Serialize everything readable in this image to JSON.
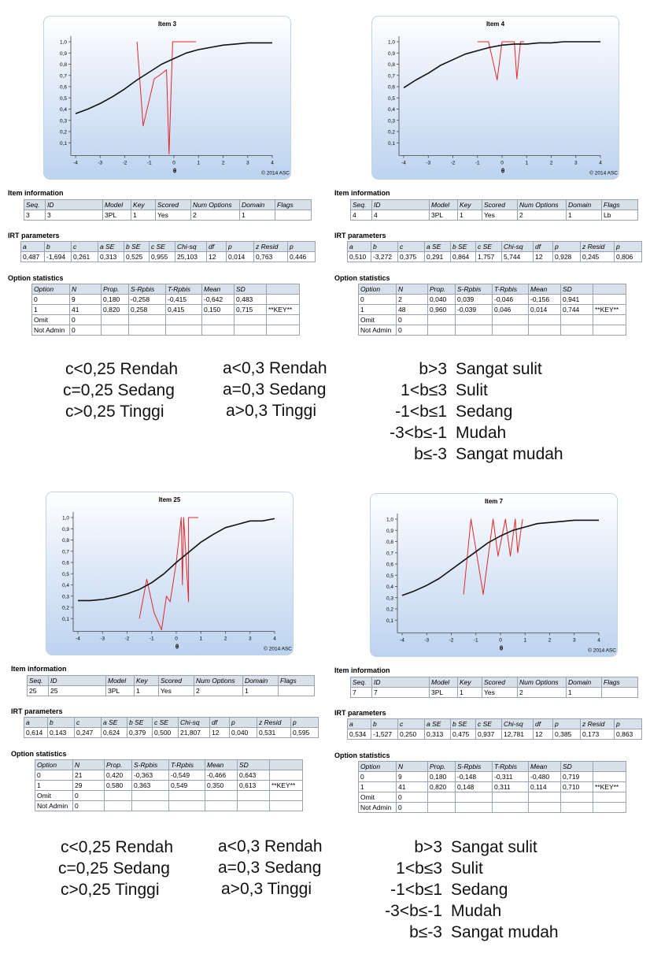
{
  "panels": [
    {
      "chart": {
        "title": "Item 3",
        "x_label": "θ",
        "copyright": "© 2014 ASC",
        "xlim": [
          -4,
          4
        ],
        "ylim": [
          0,
          1.05
        ],
        "xticks": [
          -4,
          -3,
          -2,
          -1,
          0,
          1,
          2,
          3,
          4
        ],
        "yticks": [
          {
            "value": 0.1,
            "label": "0,1"
          },
          {
            "value": 0.2,
            "label": "0,2"
          },
          {
            "value": 0.3,
            "label": "0,3"
          },
          {
            "value": 0.4,
            "label": "0,4"
          },
          {
            "value": 0.5,
            "label": "0,5"
          },
          {
            "value": 0.6,
            "label": "0,6"
          },
          {
            "value": 0.7,
            "label": "0,7"
          },
          {
            "value": 0.8,
            "label": "0,8"
          },
          {
            "value": 0.9,
            "label": "0,9"
          },
          {
            "value": 1.0,
            "label": "1,0"
          }
        ],
        "curve": {
          "color": "#111111",
          "x": [
            -4,
            -3.5,
            -3,
            -2.5,
            -2,
            -1.5,
            -1,
            -0.5,
            0,
            0.5,
            1,
            1.5,
            2,
            2.5,
            3,
            3.5,
            4
          ],
          "y": [
            0.36,
            0.4,
            0.45,
            0.51,
            0.58,
            0.66,
            0.73,
            0.8,
            0.85,
            0.9,
            0.93,
            0.95,
            0.97,
            0.98,
            0.99,
            0.99,
            0.99
          ]
        },
        "observed": {
          "color": "#e0282c",
          "x": [
            -1.5,
            -1.25,
            -0.8,
            -0.6,
            -0.3,
            -0.2,
            -0.05,
            0.9
          ],
          "y": [
            1.0,
            0.25,
            0.67,
            0.7,
            0.75,
            0.0,
            1.0,
            1.0
          ]
        }
      },
      "item_information": {
        "title": "Item information",
        "header": [
          "Seq.",
          "ID",
          "Model",
          "Key",
          "Scored",
          "Num Options",
          "Domain",
          "Flags"
        ],
        "rows": [
          [
            "3",
            "3",
            "3PL",
            "1",
            "Yes",
            "2",
            "1",
            null
          ]
        ]
      },
      "irt_parameters": {
        "title": "IRT parameters",
        "header": [
          "a",
          "b",
          "c",
          "a SE",
          "b SE",
          "c SE",
          "Chi-sq",
          "df",
          "p",
          "z Resid",
          "p"
        ],
        "rows": [
          [
            "0,487",
            "-1,694",
            "0,261",
            "0,313",
            "0,525",
            "0,955",
            "25,103",
            "12",
            "0,014",
            "0,763",
            "0,446"
          ]
        ]
      },
      "option_statistics": {
        "title": "Option statistics",
        "header": [
          "Option",
          "N",
          "Prop.",
          "S-Rpbis",
          "T-Rpbis",
          "Mean",
          "SD",
          null
        ],
        "rows": [
          [
            "0",
            "9",
            "0,180",
            "-0,258",
            "-0,415",
            "-0,642",
            "0,483",
            null
          ],
          [
            "1",
            "41",
            "0,820",
            "0,258",
            "0,415",
            "0,150",
            "0,715",
            "**KEY**"
          ],
          [
            "Omit",
            "0",
            null,
            null,
            null,
            null,
            null,
            null
          ],
          [
            "Not Admin",
            "0",
            null,
            null,
            null,
            null,
            null,
            null
          ]
        ]
      }
    },
    {
      "chart": {
        "title": "Item 4",
        "x_label": "θ",
        "copyright": "© 2014 ASC",
        "xlim": [
          -4,
          4
        ],
        "ylim": [
          0,
          1.05
        ],
        "xticks": [
          -4,
          -3,
          -2,
          -1,
          0,
          1,
          2,
          3,
          4
        ],
        "yticks": [
          {
            "value": 0.1,
            "label": "0,1"
          },
          {
            "value": 0.2,
            "label": "0,2"
          },
          {
            "value": 0.3,
            "label": "0,3"
          },
          {
            "value": 0.4,
            "label": "0,4"
          },
          {
            "value": 0.5,
            "label": "0,5"
          },
          {
            "value": 0.6,
            "label": "0,6"
          },
          {
            "value": 0.7,
            "label": "0,7"
          },
          {
            "value": 0.8,
            "label": "0,8"
          },
          {
            "value": 0.9,
            "label": "0,9"
          },
          {
            "value": 1.0,
            "label": "1,0"
          }
        ],
        "curve": {
          "color": "#111111",
          "x": [
            -4,
            -3.5,
            -3,
            -2.5,
            -2,
            -1.5,
            -1,
            -0.5,
            0,
            0.5,
            1,
            1.5,
            2,
            2.5,
            3,
            3.5,
            4
          ],
          "y": [
            0.59,
            0.66,
            0.72,
            0.79,
            0.84,
            0.89,
            0.92,
            0.95,
            0.97,
            0.98,
            0.98,
            0.99,
            0.99,
            1.0,
            1.0,
            1.0,
            1.0
          ]
        },
        "observed": {
          "color": "#e0282c",
          "x": [
            -1.0,
            -0.55,
            -0.2,
            0.0,
            0.5,
            0.6,
            0.75,
            0.9
          ],
          "y": [
            1.0,
            1.0,
            0.66,
            1.0,
            1.0,
            0.67,
            1.0,
            1.0
          ]
        }
      },
      "item_information": {
        "title": "Item information",
        "header": [
          "Seq.",
          "ID",
          "Model",
          "Key",
          "Scored",
          "Num Options",
          "Domain",
          "Flags"
        ],
        "rows": [
          [
            "4",
            "4",
            "3PL",
            "1",
            "Yes",
            "2",
            "1",
            "Lb"
          ]
        ]
      },
      "irt_parameters": {
        "title": "IRT parameters",
        "header": [
          "a",
          "b",
          "c",
          "a SE",
          "b SE",
          "c SE",
          "Chi-sq",
          "df",
          "p",
          "z Resid",
          "p"
        ],
        "rows": [
          [
            "0,510",
            "-3,272",
            "0,375",
            "0,291",
            "0,864",
            "1,757",
            "5,744",
            "12",
            "0,928",
            "0,245",
            "0,806"
          ]
        ]
      },
      "option_statistics": {
        "title": "Option statistics",
        "header": [
          "Option",
          "N",
          "Prop.",
          "S-Rpbis",
          "T-Rpbis",
          "Mean",
          "SD",
          null
        ],
        "rows": [
          [
            "0",
            "2",
            "0,040",
            "0,039",
            "-0,046",
            "-0,156",
            "0,941",
            null
          ],
          [
            "1",
            "48",
            "0,960",
            "-0,039",
            "0,046",
            "0,014",
            "0,744",
            "**KEY**"
          ],
          [
            "Omit",
            "0",
            null,
            null,
            null,
            null,
            null,
            null
          ],
          [
            "Not Admin",
            "0",
            null,
            null,
            null,
            null,
            null,
            null
          ]
        ]
      }
    },
    {
      "chart": {
        "title": "Item 25",
        "x_label": "θ",
        "copyright": "© 2014 ASC",
        "xlim": [
          -4,
          4
        ],
        "ylim": [
          0,
          1.05
        ],
        "xticks": [
          -4,
          -3,
          -2,
          -1,
          0,
          1,
          2,
          3,
          4
        ],
        "yticks": [
          {
            "value": 0.1,
            "label": "0,1"
          },
          {
            "value": 0.2,
            "label": "0,2"
          },
          {
            "value": 0.3,
            "label": "0,3"
          },
          {
            "value": 0.4,
            "label": "0,4"
          },
          {
            "value": 0.5,
            "label": "0,5"
          },
          {
            "value": 0.6,
            "label": "0,6"
          },
          {
            "value": 0.7,
            "label": "0,7"
          },
          {
            "value": 0.8,
            "label": "0,8"
          },
          {
            "value": 0.9,
            "label": "0,9"
          },
          {
            "value": 1.0,
            "label": "1,0"
          }
        ],
        "curve": {
          "color": "#111111",
          "x": [
            -4,
            -3.5,
            -3,
            -2.5,
            -2,
            -1.5,
            -1,
            -0.5,
            0,
            0.5,
            1,
            1.5,
            2,
            2.5,
            3,
            3.5,
            4
          ],
          "y": [
            0.26,
            0.26,
            0.27,
            0.29,
            0.32,
            0.36,
            0.42,
            0.5,
            0.6,
            0.69,
            0.78,
            0.85,
            0.91,
            0.94,
            0.97,
            0.97,
            0.99
          ]
        },
        "observed": {
          "color": "#e0282c",
          "x": [
            -1.5,
            -1.2,
            -0.9,
            -0.6,
            -0.4,
            -0.25,
            0.0,
            0.2,
            0.25,
            0.3,
            0.5,
            0.5,
            0.9
          ],
          "y": [
            0.1,
            0.45,
            0.15,
            0.0,
            0.3,
            0.25,
            0.6,
            1.0,
            0.4,
            1.0,
            0.25,
            1.0,
            1.0
          ]
        }
      },
      "item_information": {
        "title": "Item information",
        "header": [
          "Seq.",
          "ID",
          "Model",
          "Key",
          "Scored",
          "Num Options",
          "Domain",
          "Flags"
        ],
        "rows": [
          [
            "25",
            "25",
            "3PL",
            "1",
            "Yes",
            "2",
            "1",
            null
          ]
        ]
      },
      "irt_parameters": {
        "title": "IRT parameters",
        "header": [
          "a",
          "b",
          "c",
          "a SE",
          "b SE",
          "c SE",
          "Chi-sq",
          "df",
          "p",
          "z Resid",
          "p"
        ],
        "rows": [
          [
            "0,614",
            "0,143",
            "0,247",
            "0,624",
            "0,379",
            "0,500",
            "21,807",
            "12",
            "0,040",
            "0,531",
            "0,595"
          ]
        ]
      },
      "option_statistics": {
        "title": "Option statistics",
        "header": [
          "Option",
          "N",
          "Prop.",
          "S-Rpbis",
          "T-Rpbis",
          "Mean",
          "SD",
          null
        ],
        "rows": [
          [
            "0",
            "21",
            "0,420",
            "-0,363",
            "-0,549",
            "-0,466",
            "0,643",
            null
          ],
          [
            "1",
            "29",
            "0,580",
            "0,363",
            "0,549",
            "0,350",
            "0,613",
            "**KEY**"
          ],
          [
            "Omit",
            "0",
            null,
            null,
            null,
            null,
            null,
            null
          ],
          [
            "Not Admin",
            "0",
            null,
            null,
            null,
            null,
            null,
            null
          ]
        ]
      }
    },
    {
      "chart": {
        "title": "Item 7",
        "x_label": "θ",
        "copyright": "© 2014 ASC",
        "xlim": [
          -4,
          4
        ],
        "ylim": [
          0,
          1.05
        ],
        "xticks": [
          -4,
          -3,
          -2,
          -1,
          0,
          1,
          2,
          3,
          4
        ],
        "yticks": [
          {
            "value": 0.1,
            "label": "0,1"
          },
          {
            "value": 0.2,
            "label": "0,2"
          },
          {
            "value": 0.3,
            "label": "0,3"
          },
          {
            "value": 0.4,
            "label": "0,4"
          },
          {
            "value": 0.5,
            "label": "0,5"
          },
          {
            "value": 0.6,
            "label": "0,6"
          },
          {
            "value": 0.7,
            "label": "0,7"
          },
          {
            "value": 0.8,
            "label": "0,8"
          },
          {
            "value": 0.9,
            "label": "0,9"
          },
          {
            "value": 1.0,
            "label": "1,0"
          }
        ],
        "curve": {
          "color": "#111111",
          "x": [
            -4,
            -3.5,
            -3,
            -2.5,
            -2,
            -1.5,
            -1,
            -0.5,
            0,
            0.5,
            1,
            1.5,
            2,
            2.5,
            3,
            3.5,
            4
          ],
          "y": [
            0.32,
            0.36,
            0.41,
            0.47,
            0.55,
            0.63,
            0.71,
            0.79,
            0.85,
            0.9,
            0.93,
            0.96,
            0.97,
            0.98,
            0.99,
            0.99,
            0.99
          ]
        },
        "observed": {
          "color": "#e0282c",
          "x": [
            -1.5,
            -1.2,
            -0.7,
            -0.3,
            -0.1,
            0.2,
            0.4,
            0.6,
            0.7,
            0.9
          ],
          "y": [
            0.33,
            1.0,
            0.33,
            1.0,
            0.67,
            1.0,
            0.67,
            1.0,
            0.7,
            1.0
          ]
        }
      },
      "item_information": {
        "title": "Item information",
        "header": [
          "Seq.",
          "ID",
          "Model",
          "Key",
          "Scored",
          "Num Options",
          "Domain",
          "Flags"
        ],
        "rows": [
          [
            "7",
            "7",
            "3PL",
            "1",
            "Yes",
            "2",
            "1",
            null
          ]
        ]
      },
      "irt_parameters": {
        "title": "IRT parameters",
        "header": [
          "a",
          "b",
          "c",
          "a SE",
          "b SE",
          "c SE",
          "Chi-sq",
          "df",
          "p",
          "z Resid",
          "p"
        ],
        "rows": [
          [
            "0,534",
            "-1,527",
            "0,250",
            "0,313",
            "0,475",
            "0,937",
            "12,781",
            "12",
            "0,385",
            "0,173",
            "0,863"
          ]
        ]
      },
      "option_statistics": {
        "title": "Option statistics",
        "header": [
          "Option",
          "N",
          "Prop.",
          "S-Rpbis",
          "T-Rpbis",
          "Mean",
          "SD",
          null
        ],
        "rows": [
          [
            "0",
            "9",
            "0,180",
            "-0,148",
            "-0,311",
            "-0,480",
            "0,719",
            null
          ],
          [
            "1",
            "41",
            "0,820",
            "0,148",
            "0,311",
            "0,114",
            "0,710",
            "**KEY**"
          ],
          [
            "Omit",
            "0",
            null,
            null,
            null,
            null,
            null,
            null
          ],
          [
            "Not Admin",
            "0",
            null,
            null,
            null,
            null,
            null,
            null
          ]
        ]
      }
    }
  ],
  "criteria": [
    {
      "c": [
        "c<0,25 Rendah",
        "c=0,25 Sedang",
        "c>0,25 Tinggi"
      ],
      "a": [
        "a<0,3 Rendah",
        "a=0,3 Sedang",
        "a>0,3 Tinggi"
      ],
      "b": [
        [
          "b>3",
          "Sangat sulit"
        ],
        [
          "1<b≤3",
          "Sulit"
        ],
        [
          "-1<b≤1",
          "Sedang"
        ],
        [
          "-3<b≤-1",
          "Mudah"
        ],
        [
          "b≤-3",
          "Sangat mudah"
        ]
      ]
    },
    {
      "c": [
        "c<0,25 Rendah",
        "c=0,25 Sedang",
        "c>0,25 Tinggi"
      ],
      "a": [
        "a<0,3 Rendah",
        "a=0,3 Sedang",
        "a>0,3 Tinggi"
      ],
      "b": [
        [
          "b>3",
          "Sangat sulit"
        ],
        [
          "1<b≤3",
          "Sulit"
        ],
        [
          "-1<b≤1",
          "Sedang"
        ],
        [
          "-3<b≤-1",
          "Mudah"
        ],
        [
          "b≤-3",
          "Sangat mudah"
        ]
      ]
    }
  ]
}
